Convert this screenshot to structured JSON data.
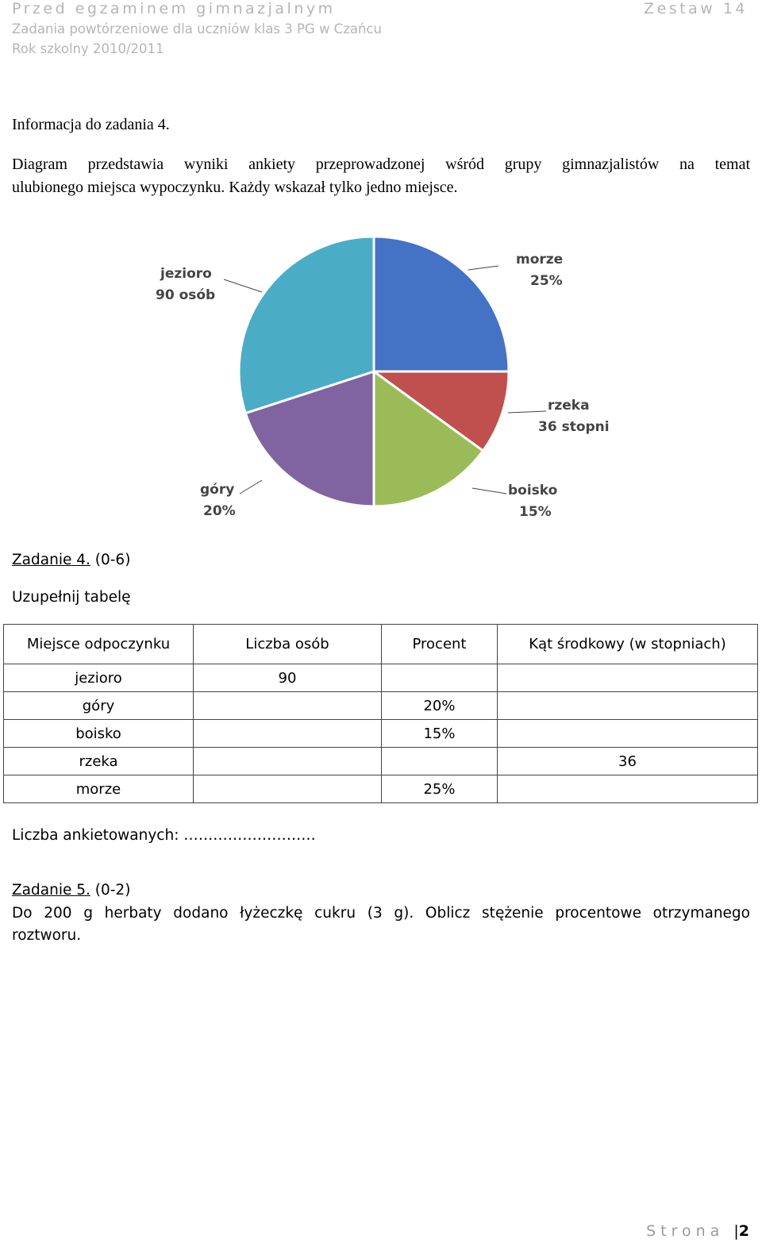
{
  "header": {
    "title": "Przed egzaminem gimnazjalnym",
    "set": "Zestaw 14",
    "subtitle": "Zadania powtórzeniowe dla uczniów klas 3 PG w Czańcu",
    "year": "Rok szkolny 2010/2011"
  },
  "info": {
    "heading": "Informacja do zadania 4.",
    "line1": "Diagram przedstawia wyniki ankiety przeprowadzonej wśród grupy gimnazjalistów na temat",
    "line2": "ulubionego miejsca wypoczynku. Każdy wskazał tylko jedno miejsce."
  },
  "chart_data": {
    "type": "pie",
    "slices": [
      {
        "name": "morze",
        "label_line2": "25%",
        "percent": 25,
        "color": "#4472c4"
      },
      {
        "name": "rzeka",
        "label_line2": "36 stopni",
        "percent": 10,
        "color": "#c0504d"
      },
      {
        "name": "boisko",
        "label_line2": "15%",
        "percent": 15,
        "color": "#9bbb59"
      },
      {
        "name": "góry",
        "label_line2": "20%",
        "percent": 20,
        "color": "#8064a2"
      },
      {
        "name": "jezioro",
        "label_line2": "90 osób",
        "percent": 30,
        "color": "#4bacc6"
      }
    ]
  },
  "task4": {
    "title": "Zadanie 4.",
    "points": "(0-6)",
    "instruction": "Uzupełnij tabelę",
    "table": {
      "headers": [
        "Miejsce odpoczynku",
        "Liczba osób",
        "Procent",
        "Kąt środkowy (w stopniach)"
      ],
      "rows": [
        [
          "jezioro",
          "90",
          "",
          ""
        ],
        [
          "góry",
          "",
          "20%",
          ""
        ],
        [
          "boisko",
          "",
          "15%",
          ""
        ],
        [
          "rzeka",
          "",
          "",
          "36"
        ],
        [
          "morze",
          "",
          "25%",
          ""
        ]
      ]
    },
    "respondents_label": "Liczba ankietowanych: ………………………"
  },
  "task5": {
    "title": "Zadanie 5.",
    "points": "(0-2)",
    "line1": "Do 200 g herbaty dodano łyżeczkę cukru (3 g). Oblicz stężenie procentowe otrzymanego",
    "line2": "roztworu."
  },
  "footer": {
    "label": "Strona",
    "page": "2"
  }
}
